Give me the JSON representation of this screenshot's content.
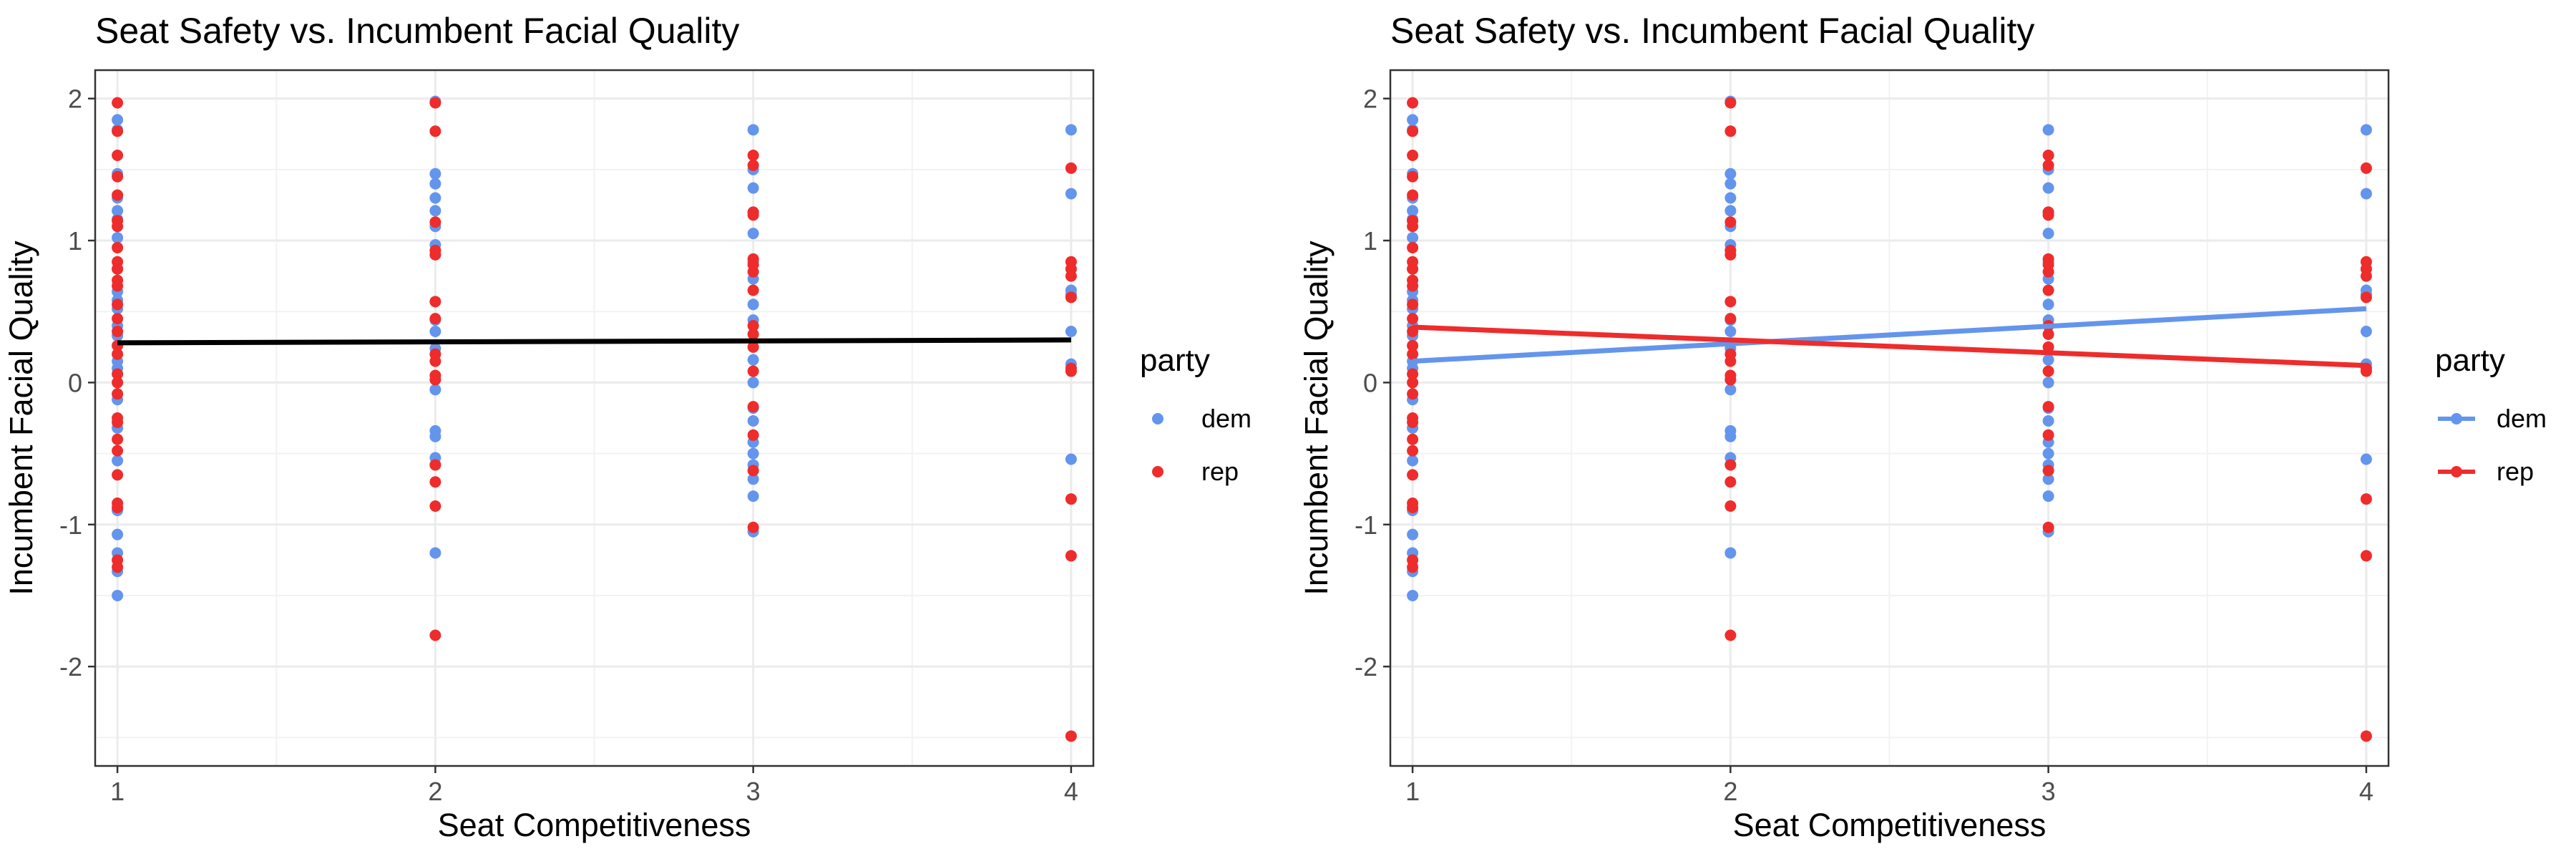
{
  "colors": {
    "dem": "#6495ED",
    "rep": "#EE2C2C",
    "overall_fit": "#000000",
    "grid_major": "#EBEBEB",
    "grid_minor": "#F2F2F2",
    "panel_border": "#333333",
    "tick_text": "#4D4D4D",
    "title_text": "#000000"
  },
  "chart_data": [
    {
      "type": "scatter",
      "title": "Seat Safety vs. Incumbent Facial Quality",
      "xlabel": "Seat Competitiveness",
      "ylabel": "Incumbent Facial Quality",
      "xlim": [
        0.93,
        4.07
      ],
      "ylim": [
        -2.7,
        2.2
      ],
      "xticks": [
        1,
        2,
        3,
        4
      ],
      "yticks": [
        -2,
        -1,
        0,
        1,
        2
      ],
      "grid": true,
      "legend": {
        "title": "party",
        "placement": "right",
        "style": "point"
      },
      "series": [
        {
          "name": "dem",
          "points": [
            [
              1,
              1.85
            ],
            [
              1,
              1.78
            ],
            [
              1,
              1.47
            ],
            [
              1,
              1.3
            ],
            [
              1,
              1.21
            ],
            [
              1,
              1.15
            ],
            [
              1,
              1.02
            ],
            [
              1,
              0.8
            ],
            [
              1,
              0.64
            ],
            [
              1,
              0.58
            ],
            [
              1,
              0.52
            ],
            [
              1,
              0.4
            ],
            [
              1,
              0.33
            ],
            [
              1,
              0.15
            ],
            [
              1,
              0.1
            ],
            [
              1,
              -0.12
            ],
            [
              1,
              -0.32
            ],
            [
              1,
              -0.55
            ],
            [
              1,
              -0.9
            ],
            [
              1,
              -1.07
            ],
            [
              1,
              -1.2
            ],
            [
              1,
              -1.33
            ],
            [
              1,
              -1.5
            ],
            [
              2,
              1.98
            ],
            [
              2,
              1.47
            ],
            [
              2,
              1.4
            ],
            [
              2,
              1.3
            ],
            [
              2,
              1.21
            ],
            [
              2,
              1.1
            ],
            [
              2,
              0.97
            ],
            [
              2,
              0.44
            ],
            [
              2,
              0.36
            ],
            [
              2,
              0.24
            ],
            [
              2,
              -0.05
            ],
            [
              2,
              -0.34
            ],
            [
              2,
              -0.38
            ],
            [
              2,
              -0.53
            ],
            [
              2,
              -0.58
            ],
            [
              2,
              -1.2
            ],
            [
              3,
              1.78
            ],
            [
              3,
              1.5
            ],
            [
              3,
              1.37
            ],
            [
              3,
              1.2
            ],
            [
              3,
              1.05
            ],
            [
              3,
              0.85
            ],
            [
              3,
              0.73
            ],
            [
              3,
              0.55
            ],
            [
              3,
              0.44
            ],
            [
              3,
              0.16
            ],
            [
              3,
              0.0
            ],
            [
              3,
              -0.18
            ],
            [
              3,
              -0.27
            ],
            [
              3,
              -0.42
            ],
            [
              3,
              -0.5
            ],
            [
              3,
              -0.58
            ],
            [
              3,
              -0.68
            ],
            [
              3,
              -0.8
            ],
            [
              3,
              -1.05
            ],
            [
              4,
              1.78
            ],
            [
              4,
              1.33
            ],
            [
              4,
              0.65
            ],
            [
              4,
              0.62
            ],
            [
              4,
              0.36
            ],
            [
              4,
              0.13
            ],
            [
              4,
              -0.54
            ]
          ]
        },
        {
          "name": "rep",
          "points": [
            [
              1,
              1.97
            ],
            [
              1,
              1.77
            ],
            [
              1,
              1.6
            ],
            [
              1,
              1.45
            ],
            [
              1,
              1.32
            ],
            [
              1,
              1.14
            ],
            [
              1,
              1.1
            ],
            [
              1,
              0.95
            ],
            [
              1,
              0.85
            ],
            [
              1,
              0.8
            ],
            [
              1,
              0.72
            ],
            [
              1,
              0.68
            ],
            [
              1,
              0.55
            ],
            [
              1,
              0.45
            ],
            [
              1,
              0.36
            ],
            [
              1,
              0.26
            ],
            [
              1,
              0.2
            ],
            [
              1,
              0.06
            ],
            [
              1,
              0.0
            ],
            [
              1,
              -0.08
            ],
            [
              1,
              -0.25
            ],
            [
              1,
              -0.28
            ],
            [
              1,
              -0.4
            ],
            [
              1,
              -0.48
            ],
            [
              1,
              -0.65
            ],
            [
              1,
              -0.85
            ],
            [
              1,
              -0.88
            ],
            [
              1,
              -1.25
            ],
            [
              1,
              -1.3
            ],
            [
              2,
              1.97
            ],
            [
              2,
              1.77
            ],
            [
              2,
              1.13
            ],
            [
              2,
              0.93
            ],
            [
              2,
              0.9
            ],
            [
              2,
              0.57
            ],
            [
              2,
              0.45
            ],
            [
              2,
              0.2
            ],
            [
              2,
              0.15
            ],
            [
              2,
              0.05
            ],
            [
              2,
              0.02
            ],
            [
              2,
              -0.58
            ],
            [
              2,
              -0.7
            ],
            [
              2,
              -0.87
            ],
            [
              2,
              -1.78
            ],
            [
              3,
              1.6
            ],
            [
              3,
              1.53
            ],
            [
              3,
              1.2
            ],
            [
              3,
              1.18
            ],
            [
              3,
              0.87
            ],
            [
              3,
              0.83
            ],
            [
              3,
              0.78
            ],
            [
              3,
              0.65
            ],
            [
              3,
              0.4
            ],
            [
              3,
              0.34
            ],
            [
              3,
              0.25
            ],
            [
              3,
              0.08
            ],
            [
              3,
              -0.17
            ],
            [
              3,
              -0.37
            ],
            [
              3,
              -0.62
            ],
            [
              3,
              -1.02
            ],
            [
              4,
              1.51
            ],
            [
              4,
              0.85
            ],
            [
              4,
              0.8
            ],
            [
              4,
              0.75
            ],
            [
              4,
              0.6
            ],
            [
              4,
              0.1
            ],
            [
              4,
              0.08
            ],
            [
              4,
              -0.82
            ],
            [
              4,
              -1.22
            ],
            [
              4,
              -2.49
            ]
          ]
        }
      ],
      "fit_lines": [
        {
          "group": "overall",
          "x": [
            1,
            4
          ],
          "y": [
            0.28,
            0.3
          ]
        }
      ]
    },
    {
      "type": "scatter",
      "title": "Seat Safety vs. Incumbent Facial Quality",
      "xlabel": "Seat Competitiveness",
      "ylabel": "Incumbent Facial Quality",
      "xlim": [
        0.93,
        4.07
      ],
      "ylim": [
        -2.7,
        2.2
      ],
      "xticks": [
        1,
        2,
        3,
        4
      ],
      "yticks": [
        -2,
        -1,
        0,
        1,
        2
      ],
      "grid": true,
      "legend": {
        "title": "party",
        "placement": "right",
        "style": "line-point"
      },
      "series": "same as chart 1",
      "fit_lines": [
        {
          "group": "dem",
          "x": [
            1,
            4
          ],
          "y": [
            0.15,
            0.52
          ]
        },
        {
          "group": "rep",
          "x": [
            1,
            4
          ],
          "y": [
            0.39,
            0.12
          ]
        }
      ]
    }
  ]
}
